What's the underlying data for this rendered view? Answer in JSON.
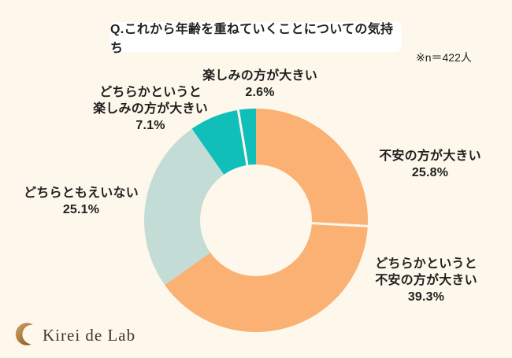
{
  "header": {
    "title": "Q.これから年齢を重ねていくことについての気持ち",
    "sample_note": "※n＝422人"
  },
  "footer": {
    "brand": "Kirei de Lab"
  },
  "colors": {
    "background": "#FDF8EB",
    "title_box_bg": "#FFFFFF",
    "text": "#1F1F1F",
    "orange": "#FBB173",
    "sage": "#C4DCD6",
    "teal": "#10BFB9",
    "logo_gold": "#B17F3C"
  },
  "chart_data": {
    "type": "pie",
    "subtype": "donut",
    "title": "Q.これから年齢を重ねていくことについての気持ち",
    "sample_note": "※n＝422人",
    "start_angle_deg": 0,
    "direction": "clockwise",
    "legend_position": "none (direct outside labels)",
    "segments": [
      {
        "label": "不安の方が大きい",
        "label_lines": [
          "不安の方が大きい"
        ],
        "value": 25.8,
        "pct_label": "25.8%",
        "color": "#FBB173",
        "divider_after": true
      },
      {
        "label": "どちらかというと不安の方が大きい",
        "label_lines": [
          "どちらかというと",
          "不安の方が大きい"
        ],
        "value": 39.3,
        "pct_label": "39.3%",
        "color": "#FBB173",
        "divider_after": false
      },
      {
        "label": "どちらともえいない",
        "label_lines": [
          "どちらともえいない"
        ],
        "value": 25.1,
        "pct_label": "25.1%",
        "color": "#C4DCD6",
        "divider_after": false
      },
      {
        "label": "どちらかというと楽しみの方が大きい",
        "label_lines": [
          "どちらかというと",
          "楽しみの方が大きい"
        ],
        "value": 7.1,
        "pct_label": "7.1%",
        "color": "#10BFB9",
        "divider_after": true
      },
      {
        "label": "楽しみの方が大きい",
        "label_lines": [
          "楽しみの方が大きい"
        ],
        "value": 2.6,
        "pct_label": "2.6%",
        "color": "#10BFB9",
        "divider_after": false
      }
    ]
  }
}
